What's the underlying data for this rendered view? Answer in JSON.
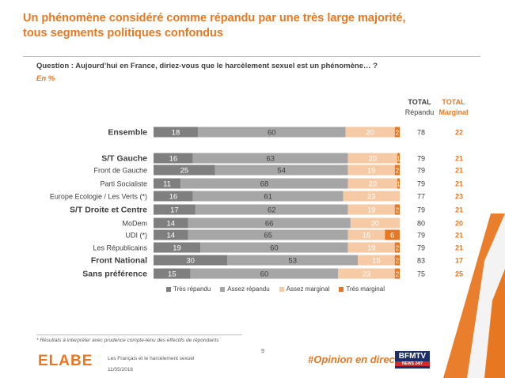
{
  "title_line1": "Un phénomène considéré comme répandu par une très large majorité,",
  "title_line2": "tous segments politiques confondus",
  "question": "Question : Aujourd’hui en France, diriez-vous que le harcèlement sexuel est un phénomène… ?",
  "unit": "En %",
  "col_total_line1": "TOTAL",
  "col_total_line2": "Répandu",
  "col_marginal_line1": "TOTAL",
  "col_marginal_line2": "Marginal",
  "footnote": "* Résultats à interpréter avec prudence compte-tenu des effectifs de répondants",
  "footer_subject": "Les Français et le harcèlement sexuel",
  "footer_date": "11/05/2016",
  "page_number": "9",
  "hashtag": "#Opinion en direct",
  "logo_text": "ELABE",
  "tv_logo_text": "BFMTV",
  "tv_logo_sub": "NEWS 24/7",
  "colors": {
    "accent": "#e87722",
    "tres_repandu": "#7f7f7f",
    "assez_repandu": "#a6a6a6",
    "assez_marginal": "#f7caa6",
    "tres_marginal": "#e87722"
  },
  "chart_data": {
    "type": "bar",
    "orientation": "horizontal",
    "stacked": true,
    "xlim": [
      0,
      100
    ],
    "categories": [
      "Ensemble",
      "S/T Gauche",
      "Front de Gauche",
      "Parti Socialiste",
      "Europe Ecologie / Les Verts (*)",
      "S/T Droite et Centre",
      "MoDem",
      "UDI (*)",
      "Les Républicains",
      "Front National",
      "Sans préférence"
    ],
    "bold_categories": [
      "Ensemble",
      "S/T Gauche",
      "S/T Droite et Centre",
      "Front National",
      "Sans préférence"
    ],
    "series": [
      {
        "name": "Très répandu",
        "values": [
          18,
          16,
          25,
          11,
          16,
          17,
          14,
          14,
          19,
          30,
          15
        ]
      },
      {
        "name": "Assez répandu",
        "values": [
          60,
          63,
          54,
          68,
          61,
          62,
          66,
          65,
          60,
          53,
          60
        ]
      },
      {
        "name": "Assez marginal",
        "values": [
          20,
          20,
          19,
          20,
          23,
          19,
          20,
          15,
          19,
          15,
          23
        ]
      },
      {
        "name": "Très marginal",
        "values": [
          2,
          1,
          2,
          1,
          0,
          2,
          0,
          6,
          2,
          2,
          2
        ]
      }
    ],
    "total_repandu": [
      78,
      79,
      79,
      79,
      77,
      79,
      80,
      79,
      79,
      83,
      75
    ],
    "total_marginal": [
      22,
      21,
      21,
      21,
      23,
      21,
      20,
      21,
      21,
      17,
      25
    ],
    "legend_position": "bottom"
  }
}
